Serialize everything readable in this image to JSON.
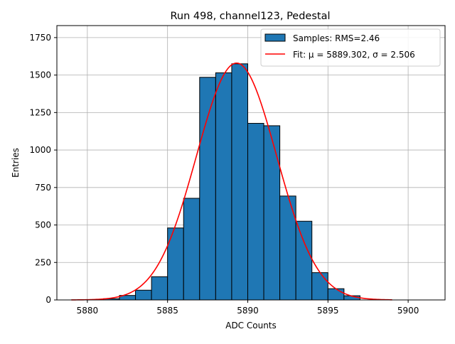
{
  "chart_data": {
    "type": "bar",
    "title": "Run 498, channel123, Pedestal",
    "xlabel": "ADC Counts",
    "ylabel": "Entries",
    "xlim": [
      5878.1,
      5902.3
    ],
    "ylim": [
      0,
      1830
    ],
    "xticks": [
      5880,
      5885,
      5890,
      5895,
      5900
    ],
    "yticks": [
      0,
      250,
      500,
      750,
      1000,
      1250,
      1500,
      1750
    ],
    "grid": true,
    "legend_position": "top-right",
    "bar_color": "#1f77b4",
    "fit_color": "#ff0000",
    "series": [
      {
        "name": "Samples: RMS=2.46",
        "kind": "histogram",
        "bin_edges": [
          5880,
          5881,
          5882,
          5883,
          5884,
          5885,
          5886,
          5887,
          5888,
          5889,
          5890,
          5891,
          5892,
          5893,
          5894,
          5895,
          5896,
          5897
        ],
        "counts": [
          2,
          8,
          30,
          65,
          155,
          480,
          678,
          1485,
          1515,
          1575,
          1178,
          1162,
          693,
          525,
          182,
          75,
          28
        ]
      },
      {
        "name": "Fit: μ = 5889.302, σ = 2.506",
        "kind": "gaussian",
        "mu": 5889.302,
        "sigma": 2.506,
        "amplitude": 1580,
        "x_range": [
          5879,
          5899
        ]
      }
    ]
  }
}
